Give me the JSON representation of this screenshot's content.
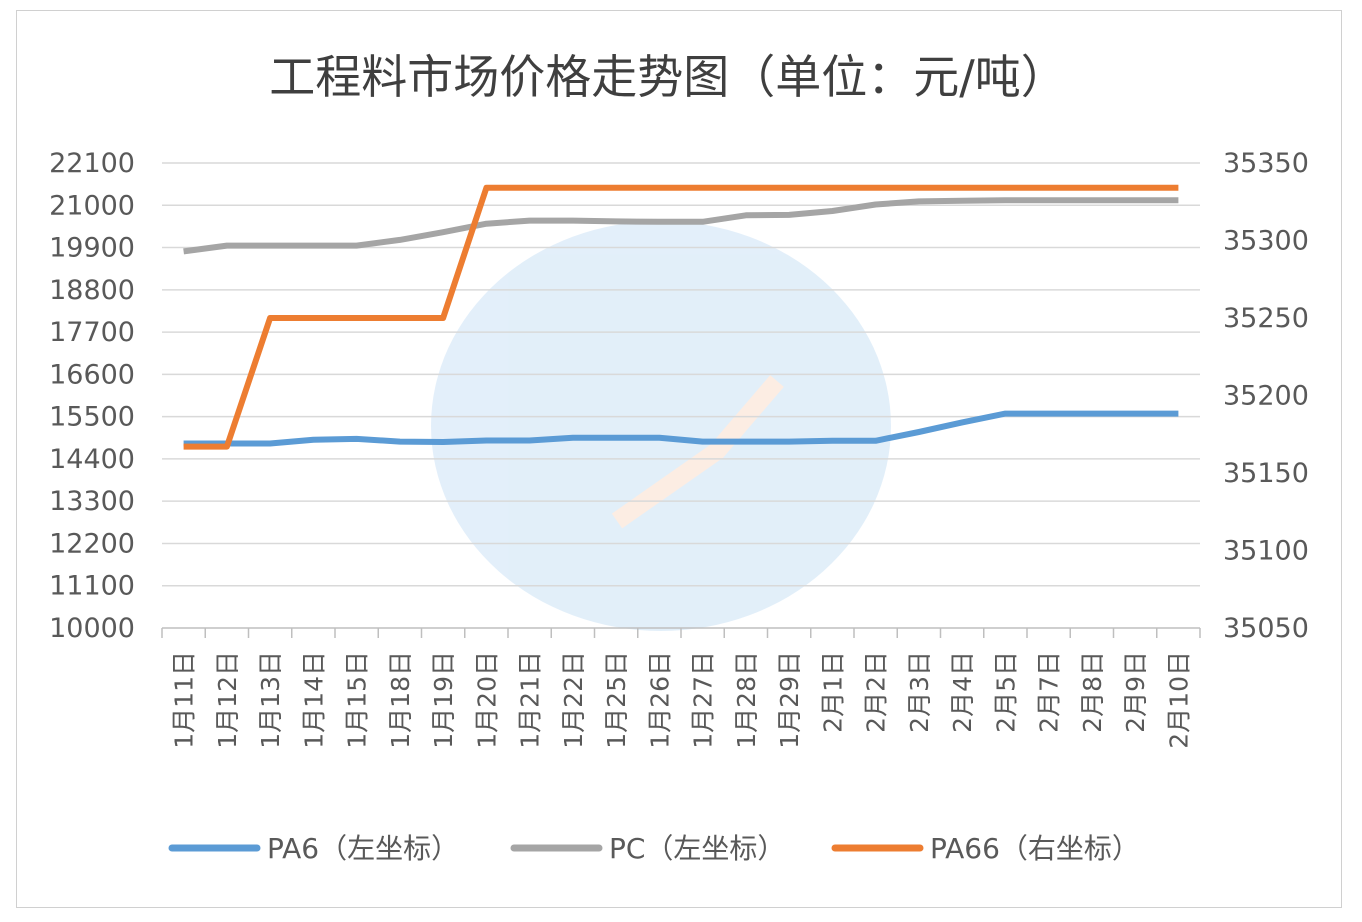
{
  "chart_data": {
    "type": "line",
    "title": "工程料市场价格走势图（单位：元/吨）",
    "categories": [
      "1月11日",
      "1月12日",
      "1月13日",
      "1月14日",
      "1月15日",
      "1月18日",
      "1月19日",
      "1月20日",
      "1月21日",
      "1月22日",
      "1月25日",
      "1月26日",
      "1月27日",
      "1月28日",
      "1月29日",
      "2月1日",
      "2月2日",
      "2月3日",
      "2月4日",
      "2月5日",
      "2月7日",
      "2月8日",
      "2月9日",
      "2月10日"
    ],
    "y_left": {
      "ylim": [
        10000,
        22100
      ],
      "ticks": [
        10000,
        11100,
        12200,
        13300,
        14400,
        15500,
        16600,
        17700,
        18800,
        19900,
        21000,
        22100
      ]
    },
    "y_right": {
      "ylim": [
        35050,
        35350
      ],
      "ticks": [
        35050,
        35100,
        35150,
        35200,
        35250,
        35300,
        35350
      ]
    },
    "grid": true,
    "legend_position": "bottom",
    "series": [
      {
        "name": "PA6（左坐标）",
        "axis": "left",
        "color": "#5b9bd5",
        "values": [
          14800,
          14800,
          14800,
          14900,
          14920,
          14850,
          14840,
          14880,
          14880,
          14950,
          14950,
          14950,
          14850,
          14850,
          14850,
          14870,
          14870,
          15100,
          15350,
          15580,
          15580,
          15580,
          15580,
          15580
        ]
      },
      {
        "name": "PC（左坐标）",
        "axis": "left",
        "color": "#a5a5a5",
        "values": [
          19800,
          19950,
          19950,
          19950,
          19950,
          20100,
          20300,
          20520,
          20600,
          20600,
          20580,
          20570,
          20570,
          20740,
          20750,
          20850,
          21020,
          21100,
          21120,
          21130,
          21130,
          21130,
          21130,
          21130
        ]
      },
      {
        "name": "PA66（右坐标）",
        "axis": "right",
        "color": "#ed7d31",
        "values": [
          35167,
          35167,
          35250,
          35250,
          35250,
          35250,
          35250,
          35334,
          35334,
          35334,
          35334,
          35334,
          35334,
          35334,
          35334,
          35334,
          35334,
          35334,
          35334,
          35334,
          35334,
          35334,
          35334,
          35334
        ]
      }
    ]
  }
}
